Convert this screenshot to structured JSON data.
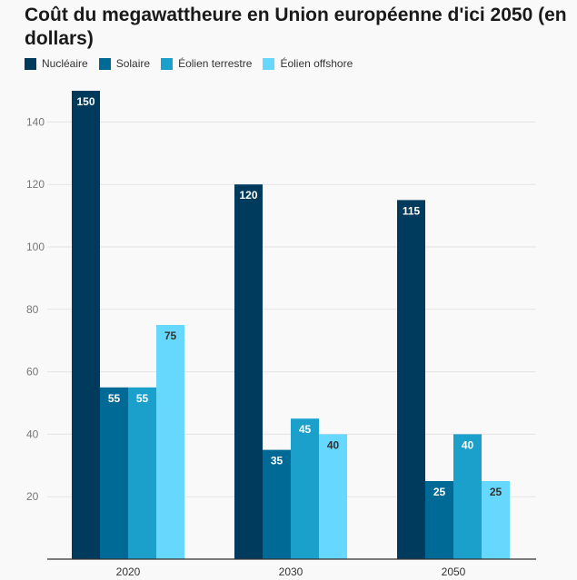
{
  "title": "Coût du megawattheure en Union européenne d'ici 2050 (en dollars)",
  "chart_data": {
    "type": "bar",
    "title": "Coût du megawattheure en Union européenne d'ici 2050 (en dollars)",
    "categories": [
      "2020",
      "2030",
      "2050"
    ],
    "series": [
      {
        "name": "Nucléaire",
        "color": "#003a5c",
        "label_color": "#ffffff",
        "values": [
          150,
          120,
          115
        ]
      },
      {
        "name": "Solaire",
        "color": "#006a96",
        "label_color": "#ffffff",
        "values": [
          55,
          35,
          25
        ]
      },
      {
        "name": "Éolien terrestre",
        "color": "#1ba0cc",
        "label_color": "#ffffff",
        "values": [
          55,
          45,
          40
        ]
      },
      {
        "name": "Éolien offshore",
        "color": "#66d7fd",
        "label_color": "#333333",
        "values": [
          75,
          40,
          25
        ]
      }
    ],
    "yticks": [
      20,
      40,
      60,
      80,
      100,
      120,
      140
    ],
    "ylim": [
      0,
      150
    ],
    "grid": true,
    "legend_position": "top-left",
    "xlabel": "",
    "ylabel": ""
  }
}
